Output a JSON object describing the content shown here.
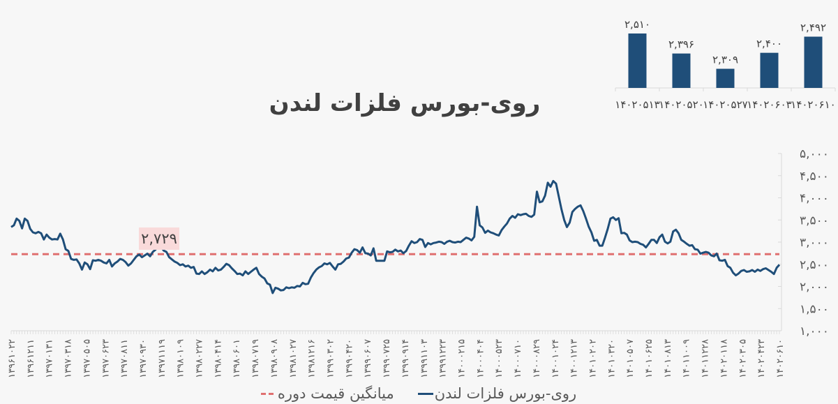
{
  "title": "روی-بورس فلزات لندن",
  "legend": [
    {
      "label": "روی-بورس فلزات لندن",
      "color": "#1f4e79",
      "style": "solid"
    },
    {
      "label": "میانگین قیمت دوره",
      "color": "#e07070",
      "style": "dashed"
    }
  ],
  "average_label": "۲,۷۲۹",
  "chart_data": [
    {
      "type": "line",
      "title": "روی-بورس فلزات لندن",
      "xlabel": "",
      "ylabel": "",
      "ylim": [
        1000,
        5000
      ],
      "yticks": [
        "۵,۰۰۰",
        "۴,۵۰۰",
        "۴,۰۰۰",
        "۳,۵۰۰",
        "۳,۰۰۰",
        "۲,۵۰۰",
        "۲,۰۰۰",
        "۱,۵۰۰",
        "۱,۰۰۰"
      ],
      "ytick_values": [
        5000,
        4500,
        4000,
        3500,
        3000,
        2500,
        2000,
        1500,
        1000
      ],
      "grid": false,
      "legend_position": "bottom",
      "x_tick_labels": [
        "۱۳۹۶۱۰۲۲",
        "۱۳۹۶۱۲۱۱",
        "۱۳۹۷۰۱۳۱",
        "۱۳۹۷۰۳۱۸",
        "۱۳۹۷۰۵۰۵",
        "۱۳۹۷۰۶۲۳",
        "۱۳۹۷۰۸۱۱",
        "۱۳۹۷۰۹۳۰",
        "۱۳۹۷۱۱۱۹",
        "۱۳۹۸۰۱۰۹",
        "۱۳۹۸۰۲۲۷",
        "۱۳۹۸۰۴۱۴",
        "۱۳۹۸۰۶۰۱",
        "۱۳۹۸۰۷۱۹",
        "۱۳۹۸۰۹۰۸",
        "۱۳۹۸۱۰۲۷",
        "۱۳۹۸۱۲۱۶",
        "۱۳۹۹۰۳۰۲",
        "۱۳۹۹۰۴۲۰",
        "۱۳۹۹۰۶۰۷",
        "۱۳۹۹۰۷۲۵",
        "۱۳۹۹۰۹۱۴",
        "۱۳۹۹۱۱۰۳",
        "۱۳۹۹۱۲۲۳",
        "۱۴۰۰۰۲۱۵",
        "۱۴۰۰۰۴۰۴",
        "۱۴۰۰۰۵۲۳",
        "۱۴۰۰۰۷۱۰",
        "۱۴۰۰۰۸۲۹",
        "۱۴۰۰۱۰۲۴",
        "۱۴۰۰۱۲۱۳",
        "۱۴۰۱۰۲۰۲",
        "۱۴۰۱۰۳۲۰",
        "۱۴۰۱۰۵۰۷",
        "۱۴۰۱۰۶۲۵",
        "۱۴۰۱۰۸۱۳",
        "۱۴۰۱۱۰۰۹",
        "۱۴۰۱۱۲۲۸",
        "۱۴۰۲۰۱۱۸",
        "۱۴۰۲۰۳۰۵",
        "۱۴۰۲۰۴۲۳",
        "۱۴۰۲۰۶۱۰"
      ],
      "series": [
        {
          "name": "روی-بورس فلزات لندن",
          "color": "#1f4e79",
          "values": [
            3340,
            3380,
            3530,
            3480,
            3310,
            3530,
            3480,
            3300,
            3220,
            3200,
            3230,
            3200,
            3060,
            3170,
            3100,
            3060,
            3070,
            3060,
            3190,
            3060,
            2840,
            2800,
            2620,
            2600,
            2610,
            2520,
            2380,
            2540,
            2500,
            2390,
            2590,
            2580,
            2600,
            2580,
            2540,
            2520,
            2600,
            2450,
            2520,
            2560,
            2620,
            2600,
            2550,
            2470,
            2520,
            2600,
            2680,
            2720,
            2660,
            2700,
            2740,
            2680,
            2780,
            2830,
            2950,
            2900,
            2810,
            2780,
            2660,
            2610,
            2560,
            2530,
            2480,
            2500,
            2450,
            2470,
            2420,
            2440,
            2290,
            2280,
            2340,
            2280,
            2320,
            2380,
            2340,
            2420,
            2360,
            2380,
            2440,
            2510,
            2480,
            2410,
            2350,
            2280,
            2290,
            2250,
            2340,
            2280,
            2330,
            2380,
            2420,
            2280,
            2220,
            2180,
            2070,
            2040,
            1850,
            1970,
            1950,
            1910,
            1920,
            1980,
            1960,
            1980,
            1970,
            2010,
            2000,
            2080,
            2050,
            2060,
            2200,
            2300,
            2380,
            2430,
            2460,
            2520,
            2500,
            2530,
            2450,
            2380,
            2500,
            2510,
            2560,
            2630,
            2650,
            2760,
            2840,
            2820,
            2760,
            2880,
            2750,
            2740,
            2700,
            2860,
            2580,
            2580,
            2580,
            2580,
            2790,
            2770,
            2780,
            2830,
            2790,
            2810,
            2750,
            2800,
            2920,
            3020,
            2980,
            3000,
            3070,
            3050,
            2890,
            2980,
            2950,
            2980,
            2990,
            3010,
            3000,
            2960,
            3010,
            3030,
            3000,
            2990,
            3010,
            3000,
            3050,
            3100,
            3080,
            3040,
            3120,
            3800,
            3380,
            3330,
            3210,
            3260,
            3220,
            3200,
            3170,
            3150,
            3270,
            3350,
            3420,
            3530,
            3590,
            3550,
            3630,
            3610,
            3630,
            3640,
            3590,
            3570,
            3620,
            4140,
            3900,
            3920,
            4050,
            4340,
            4250,
            4380,
            4320,
            4030,
            3740,
            3500,
            3340,
            3440,
            3680,
            3750,
            3800,
            3830,
            3700,
            3530,
            3350,
            3220,
            3030,
            3050,
            2920,
            2920,
            3100,
            3300,
            3530,
            3560,
            3500,
            3540,
            3200,
            3210,
            3170,
            3040,
            3000,
            3010,
            3000,
            2960,
            2940,
            2880,
            2960,
            3050,
            3050,
            2980,
            3110,
            3170,
            3010,
            2970,
            3010,
            3240,
            3280,
            3200,
            3050,
            3010,
            2960,
            2920,
            2930,
            2840,
            2830,
            2740,
            2760,
            2780,
            2760,
            2700,
            2680,
            2740,
            2590,
            2580,
            2600,
            2460,
            2420,
            2310,
            2250,
            2290,
            2350,
            2370,
            2330,
            2340,
            2370,
            2330,
            2380,
            2350,
            2390,
            2410,
            2370,
            2330,
            2280,
            2420,
            2490
          ]
        },
        {
          "name": "میانگین قیمت دوره",
          "color": "#e07070",
          "style": "dashed",
          "constant_value": 2729
        }
      ],
      "annotations": [
        {
          "text": "۲,۷۲۹",
          "value": 2729
        }
      ]
    },
    {
      "type": "bar",
      "title": "",
      "categories": [
        "۱۴۰۲۰۵۱۳",
        "۱۴۰۲۰۵۲۰",
        "۱۴۰۲۰۵۲۷",
        "۱۴۰۲۰۶۰۳",
        "۱۴۰۲۰۶۱۰"
      ],
      "values": [
        2510,
        2396,
        2309,
        2400,
        2492
      ],
      "value_labels": [
        "۲,۵۱۰",
        "۲,۳۹۶",
        "۲,۳۰۹",
        "۲,۴۰۰",
        "۲,۴۹۲"
      ],
      "color": "#1f4e79",
      "xlabel": "",
      "ylabel": "",
      "grid": false
    }
  ]
}
